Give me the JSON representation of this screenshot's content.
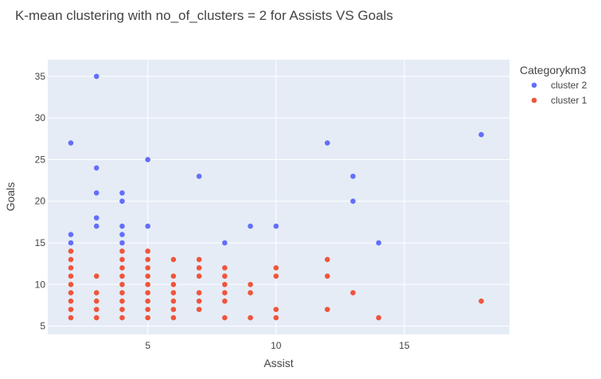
{
  "chart_data": {
    "type": "scatter",
    "title": "K-mean clustering with no_of_clusters = 2 for Assists VS Goals",
    "xlabel": "Assist",
    "ylabel": "Goals",
    "xlim": [
      1.1,
      19.1
    ],
    "ylim": [
      4,
      37
    ],
    "x_ticks": [
      5,
      10,
      15
    ],
    "y_ticks": [
      5,
      10,
      15,
      20,
      25,
      30,
      35
    ],
    "grid": true,
    "legend": {
      "title": "Categorykm3",
      "placement": "top-right"
    },
    "series": [
      {
        "name": "cluster 2",
        "color": "#636efa",
        "points": [
          [
            2,
            27
          ],
          [
            2,
            16
          ],
          [
            2,
            15
          ],
          [
            3,
            35
          ],
          [
            3,
            24
          ],
          [
            3,
            21
          ],
          [
            3,
            18
          ],
          [
            3,
            17
          ],
          [
            4,
            21
          ],
          [
            4,
            20
          ],
          [
            4,
            17
          ],
          [
            4,
            16
          ],
          [
            4,
            15
          ],
          [
            5,
            25
          ],
          [
            5,
            17
          ],
          [
            7,
            23
          ],
          [
            8,
            15
          ],
          [
            9,
            17
          ],
          [
            10,
            17
          ],
          [
            12,
            27
          ],
          [
            13,
            23
          ],
          [
            13,
            20
          ],
          [
            14,
            15
          ],
          [
            18,
            28
          ]
        ]
      },
      {
        "name": "cluster 1",
        "color": "#ef553b",
        "points": [
          [
            2,
            14
          ],
          [
            2,
            13
          ],
          [
            2,
            12
          ],
          [
            2,
            11
          ],
          [
            2,
            10
          ],
          [
            2,
            9
          ],
          [
            2,
            8
          ],
          [
            2,
            7
          ],
          [
            2,
            6
          ],
          [
            3,
            11
          ],
          [
            3,
            9
          ],
          [
            3,
            8
          ],
          [
            3,
            7
          ],
          [
            3,
            6
          ],
          [
            4,
            14
          ],
          [
            4,
            13
          ],
          [
            4,
            12
          ],
          [
            4,
            11
          ],
          [
            4,
            10
          ],
          [
            4,
            9
          ],
          [
            4,
            8
          ],
          [
            4,
            7
          ],
          [
            4,
            6
          ],
          [
            5,
            14
          ],
          [
            5,
            13
          ],
          [
            5,
            12
          ],
          [
            5,
            11
          ],
          [
            5,
            10
          ],
          [
            5,
            9
          ],
          [
            5,
            8
          ],
          [
            5,
            7
          ],
          [
            5,
            6
          ],
          [
            6,
            13
          ],
          [
            6,
            11
          ],
          [
            6,
            10
          ],
          [
            6,
            9
          ],
          [
            6,
            8
          ],
          [
            6,
            7
          ],
          [
            6,
            6
          ],
          [
            7,
            13
          ],
          [
            7,
            12
          ],
          [
            7,
            11
          ],
          [
            7,
            9
          ],
          [
            7,
            8
          ],
          [
            7,
            7
          ],
          [
            8,
            12
          ],
          [
            8,
            11
          ],
          [
            8,
            10
          ],
          [
            8,
            9
          ],
          [
            8,
            8
          ],
          [
            8,
            6
          ],
          [
            9,
            10
          ],
          [
            9,
            9
          ],
          [
            9,
            6
          ],
          [
            10,
            12
          ],
          [
            10,
            11
          ],
          [
            10,
            7
          ],
          [
            10,
            6
          ],
          [
            12,
            13
          ],
          [
            12,
            11
          ],
          [
            12,
            7
          ],
          [
            13,
            9
          ],
          [
            14,
            6
          ],
          [
            18,
            8
          ]
        ]
      }
    ]
  }
}
